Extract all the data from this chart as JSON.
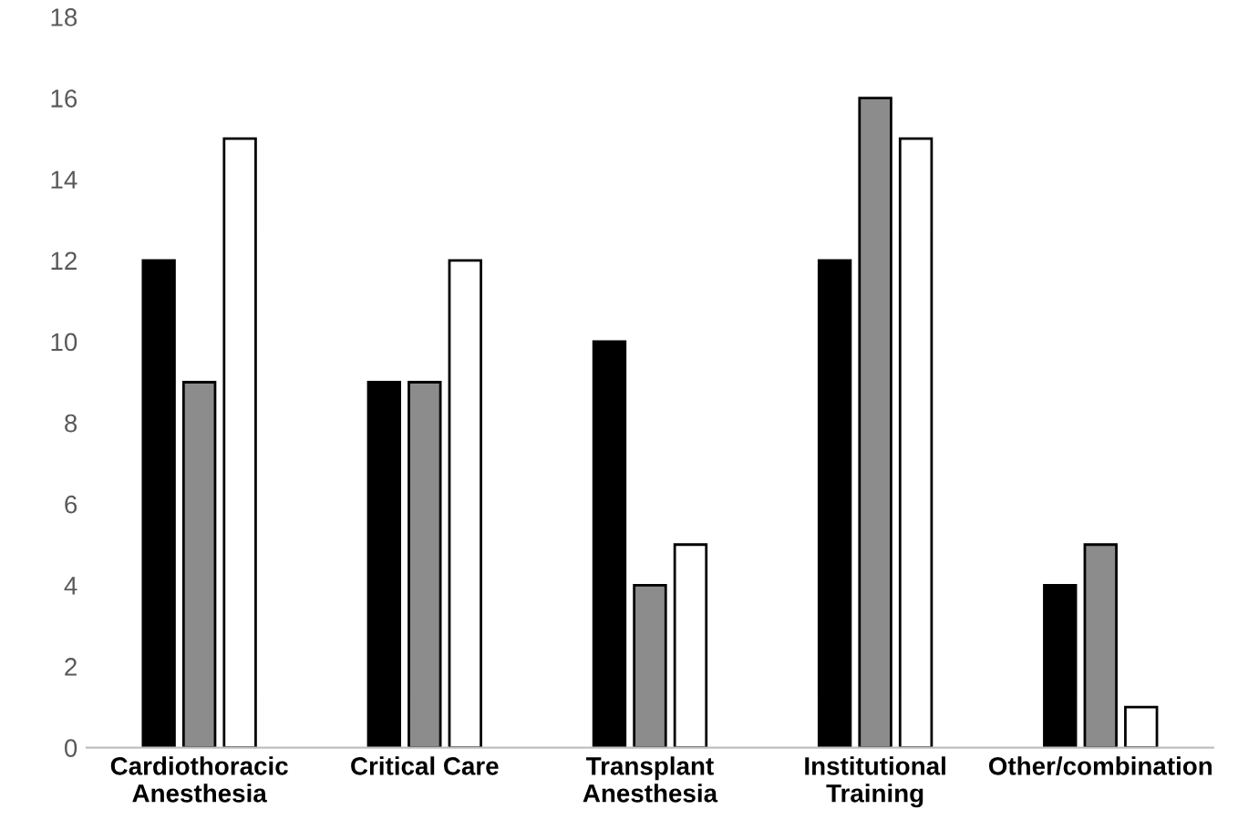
{
  "chart_data": {
    "type": "bar",
    "categories": [
      "Cardiothoracic\nAnesthesia",
      "Critical Care",
      "Transplant\nAnesthesia",
      "Institutional\nTraining",
      "Other/combination"
    ],
    "series": [
      {
        "color": "#000000",
        "values": [
          12,
          9,
          10,
          12,
          4
        ]
      },
      {
        "color": "#8c8c8c",
        "values": [
          9,
          9,
          4,
          16,
          5
        ]
      },
      {
        "color": "#ffffff",
        "values": [
          15,
          12,
          5,
          15,
          1
        ]
      }
    ],
    "ylim": [
      0,
      18
    ],
    "yticks": [
      0,
      2,
      4,
      6,
      8,
      10,
      12,
      14,
      16,
      18
    ],
    "grid": false,
    "legend": false
  }
}
